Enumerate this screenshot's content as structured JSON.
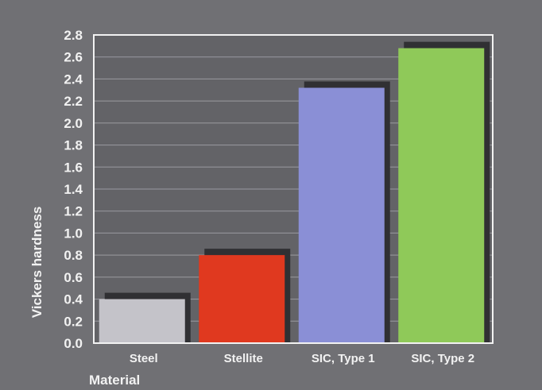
{
  "chart_data": {
    "type": "bar",
    "xlabel": "Material",
    "ylabel": "Vickers hardness",
    "categories": [
      "Steel",
      "Stellite",
      "SIC, Type 1",
      "SIC, Type 2"
    ],
    "values": [
      0.4,
      0.8,
      2.32,
      2.68
    ],
    "ylim": [
      0,
      2.8
    ],
    "yticks": [
      "0.0",
      "0.2",
      "0.4",
      "0.6",
      "0.8",
      "1.0",
      "1.2",
      "1.4",
      "1.6",
      "1.8",
      "2.0",
      "2.2",
      "2.4",
      "2.6",
      "2.8"
    ],
    "grid": true,
    "bar_colors": [
      "#c4c3c9",
      "#e0391f",
      "#8a8fd6",
      "#8fc959"
    ],
    "shadow_color": "#303033",
    "background_color": "#707074",
    "plot_color": "#636367",
    "frame_color": "#f2f2f2",
    "grid_color": "#9a9aa0",
    "text_color": "#f2f2f2"
  }
}
